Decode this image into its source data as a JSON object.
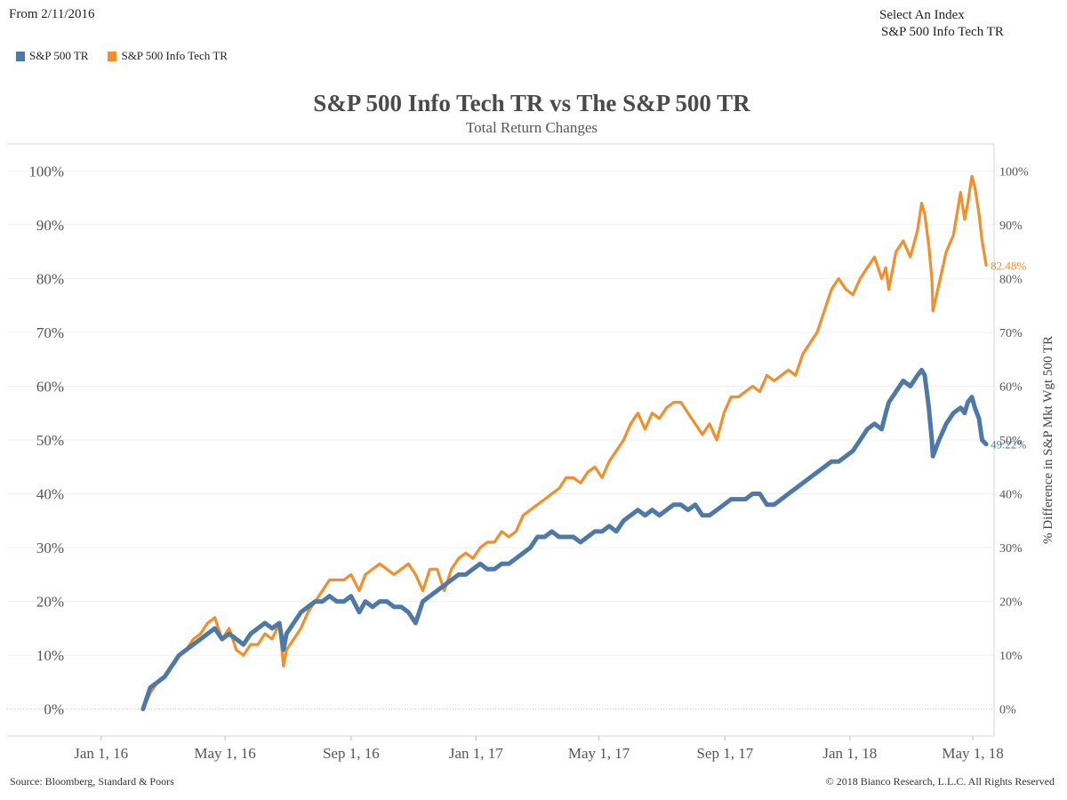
{
  "header": {
    "from_label": "From 2/11/2016",
    "select_label": "Select An Index",
    "select_value": "S&P 500 Info Tech TR"
  },
  "legend": [
    {
      "label": "S&P 500 TR",
      "color": "#4e79a7"
    },
    {
      "label": "S&P 500 Info Tech TR",
      "color": "#f28e2b"
    }
  ],
  "footer": {
    "source": "Source: Bloomberg, Standard & Poors",
    "copyright": "© 2018 Bianco Research, L.L.C. All Rights Reserved"
  },
  "chart_data": {
    "type": "line",
    "title": "S&P 500 Info Tech TR vs The S&P 500 TR",
    "subtitle": "Total Return Changes",
    "xlabel": "",
    "ylabel_right": "% Difference in S&P Mkt Wgt 500 TR",
    "x_range": [
      "2015-12-01",
      "2018-05-20"
    ],
    "ylim": [
      -5,
      105
    ],
    "yticks": [
      0,
      10,
      20,
      30,
      40,
      50,
      60,
      70,
      80,
      90,
      100
    ],
    "ytick_labels": [
      "0%",
      "10%",
      "20%",
      "30%",
      "40%",
      "50%",
      "60%",
      "70%",
      "80%",
      "90%",
      "100%"
    ],
    "xticks": [
      {
        "date": "2016-01-01",
        "label": "Jan 1, 16"
      },
      {
        "date": "2016-05-01",
        "label": "May 1, 16"
      },
      {
        "date": "2016-09-01",
        "label": "Sep 1, 16"
      },
      {
        "date": "2017-01-01",
        "label": "Jan 1, 17"
      },
      {
        "date": "2017-05-01",
        "label": "May 1, 17"
      },
      {
        "date": "2017-09-01",
        "label": "Sep 1, 17"
      },
      {
        "date": "2018-01-01",
        "label": "Jan 1, 18"
      },
      {
        "date": "2018-05-01",
        "label": "May 1, 18"
      }
    ],
    "grid": true,
    "legend_position": "top-left",
    "series": [
      {
        "name": "S&P 500 Info Tech TR",
        "color": "#f28e2b",
        "end_label": "82.48%",
        "points": [
          [
            "2016-02-11",
            0
          ],
          [
            "2016-02-18",
            3
          ],
          [
            "2016-02-25",
            5
          ],
          [
            "2016-03-03",
            6
          ],
          [
            "2016-03-10",
            8
          ],
          [
            "2016-03-17",
            10
          ],
          [
            "2016-03-24",
            11
          ],
          [
            "2016-03-31",
            13
          ],
          [
            "2016-04-07",
            14
          ],
          [
            "2016-04-14",
            16
          ],
          [
            "2016-04-21",
            17
          ],
          [
            "2016-04-28",
            13
          ],
          [
            "2016-05-05",
            15
          ],
          [
            "2016-05-12",
            11
          ],
          [
            "2016-05-19",
            10
          ],
          [
            "2016-05-26",
            12
          ],
          [
            "2016-06-02",
            12
          ],
          [
            "2016-06-09",
            14
          ],
          [
            "2016-06-16",
            13
          ],
          [
            "2016-06-23",
            16
          ],
          [
            "2016-06-27",
            8
          ],
          [
            "2016-06-30",
            11
          ],
          [
            "2016-07-07",
            13
          ],
          [
            "2016-07-14",
            15
          ],
          [
            "2016-07-21",
            18
          ],
          [
            "2016-07-28",
            20
          ],
          [
            "2016-08-04",
            22
          ],
          [
            "2016-08-11",
            24
          ],
          [
            "2016-08-18",
            24
          ],
          [
            "2016-08-25",
            24
          ],
          [
            "2016-09-01",
            25
          ],
          [
            "2016-09-09",
            22
          ],
          [
            "2016-09-15",
            25
          ],
          [
            "2016-09-22",
            26
          ],
          [
            "2016-09-29",
            27
          ],
          [
            "2016-10-06",
            26
          ],
          [
            "2016-10-13",
            25
          ],
          [
            "2016-10-20",
            26
          ],
          [
            "2016-10-27",
            27
          ],
          [
            "2016-11-03",
            25
          ],
          [
            "2016-11-10",
            22
          ],
          [
            "2016-11-17",
            26
          ],
          [
            "2016-11-24",
            26
          ],
          [
            "2016-12-01",
            22
          ],
          [
            "2016-12-08",
            26
          ],
          [
            "2016-12-15",
            28
          ],
          [
            "2016-12-22",
            29
          ],
          [
            "2016-12-29",
            28
          ],
          [
            "2017-01-05",
            30
          ],
          [
            "2017-01-12",
            31
          ],
          [
            "2017-01-19",
            31
          ],
          [
            "2017-01-26",
            33
          ],
          [
            "2017-02-02",
            32
          ],
          [
            "2017-02-09",
            33
          ],
          [
            "2017-02-16",
            36
          ],
          [
            "2017-02-23",
            37
          ],
          [
            "2017-03-02",
            38
          ],
          [
            "2017-03-09",
            39
          ],
          [
            "2017-03-16",
            40
          ],
          [
            "2017-03-23",
            41
          ],
          [
            "2017-03-30",
            43
          ],
          [
            "2017-04-06",
            43
          ],
          [
            "2017-04-13",
            42
          ],
          [
            "2017-04-20",
            44
          ],
          [
            "2017-04-27",
            45
          ],
          [
            "2017-05-04",
            43
          ],
          [
            "2017-05-11",
            46
          ],
          [
            "2017-05-18",
            48
          ],
          [
            "2017-05-25",
            50
          ],
          [
            "2017-06-01",
            53
          ],
          [
            "2017-06-08",
            55
          ],
          [
            "2017-06-15",
            52
          ],
          [
            "2017-06-22",
            55
          ],
          [
            "2017-06-29",
            54
          ],
          [
            "2017-07-06",
            56
          ],
          [
            "2017-07-13",
            57
          ],
          [
            "2017-07-20",
            57
          ],
          [
            "2017-07-27",
            55
          ],
          [
            "2017-08-03",
            53
          ],
          [
            "2017-08-10",
            51
          ],
          [
            "2017-08-17",
            53
          ],
          [
            "2017-08-24",
            50
          ],
          [
            "2017-08-31",
            55
          ],
          [
            "2017-09-07",
            58
          ],
          [
            "2017-09-14",
            58
          ],
          [
            "2017-09-21",
            59
          ],
          [
            "2017-09-28",
            60
          ],
          [
            "2017-10-05",
            59
          ],
          [
            "2017-10-12",
            62
          ],
          [
            "2017-10-19",
            61
          ],
          [
            "2017-10-26",
            62
          ],
          [
            "2017-11-02",
            63
          ],
          [
            "2017-11-09",
            62
          ],
          [
            "2017-11-16",
            66
          ],
          [
            "2017-11-23",
            68
          ],
          [
            "2017-11-30",
            70
          ],
          [
            "2017-12-07",
            74
          ],
          [
            "2017-12-14",
            78
          ],
          [
            "2017-12-21",
            80
          ],
          [
            "2017-12-28",
            78
          ],
          [
            "2018-01-04",
            77
          ],
          [
            "2018-01-11",
            80
          ],
          [
            "2018-01-18",
            82
          ],
          [
            "2018-01-25",
            84
          ],
          [
            "2018-02-01",
            80
          ],
          [
            "2018-02-05",
            82
          ],
          [
            "2018-02-08",
            78
          ],
          [
            "2018-02-15",
            85
          ],
          [
            "2018-02-22",
            87
          ],
          [
            "2018-03-01",
            84
          ],
          [
            "2018-03-08",
            89
          ],
          [
            "2018-03-12",
            94
          ],
          [
            "2018-03-15",
            92
          ],
          [
            "2018-03-19",
            86
          ],
          [
            "2018-03-22",
            80
          ],
          [
            "2018-03-23",
            74
          ],
          [
            "2018-03-29",
            79
          ],
          [
            "2018-04-05",
            85
          ],
          [
            "2018-04-12",
            88
          ],
          [
            "2018-04-19",
            96
          ],
          [
            "2018-04-23",
            91
          ],
          [
            "2018-04-26",
            94
          ],
          [
            "2018-04-30",
            99
          ],
          [
            "2018-05-03",
            97
          ],
          [
            "2018-05-07",
            92
          ],
          [
            "2018-05-10",
            87
          ],
          [
            "2018-05-14",
            82.48
          ]
        ]
      },
      {
        "name": "S&P 500 TR",
        "color": "#4e79a7",
        "end_label": "49.22%",
        "points": [
          [
            "2016-02-11",
            0
          ],
          [
            "2016-02-18",
            4
          ],
          [
            "2016-02-25",
            5
          ],
          [
            "2016-03-03",
            6
          ],
          [
            "2016-03-10",
            8
          ],
          [
            "2016-03-17",
            10
          ],
          [
            "2016-03-24",
            11
          ],
          [
            "2016-03-31",
            12
          ],
          [
            "2016-04-07",
            13
          ],
          [
            "2016-04-14",
            14
          ],
          [
            "2016-04-21",
            15
          ],
          [
            "2016-04-28",
            13
          ],
          [
            "2016-05-05",
            14
          ],
          [
            "2016-05-12",
            13
          ],
          [
            "2016-05-19",
            12
          ],
          [
            "2016-05-26",
            14
          ],
          [
            "2016-06-02",
            15
          ],
          [
            "2016-06-09",
            16
          ],
          [
            "2016-06-16",
            15
          ],
          [
            "2016-06-23",
            16
          ],
          [
            "2016-06-27",
            11
          ],
          [
            "2016-06-30",
            14
          ],
          [
            "2016-07-07",
            16
          ],
          [
            "2016-07-14",
            18
          ],
          [
            "2016-07-21",
            19
          ],
          [
            "2016-07-28",
            20
          ],
          [
            "2016-08-04",
            20
          ],
          [
            "2016-08-11",
            21
          ],
          [
            "2016-08-18",
            20
          ],
          [
            "2016-08-25",
            20
          ],
          [
            "2016-09-01",
            21
          ],
          [
            "2016-09-09",
            18
          ],
          [
            "2016-09-15",
            20
          ],
          [
            "2016-09-22",
            19
          ],
          [
            "2016-09-29",
            20
          ],
          [
            "2016-10-06",
            20
          ],
          [
            "2016-10-13",
            19
          ],
          [
            "2016-10-20",
            19
          ],
          [
            "2016-10-27",
            18
          ],
          [
            "2016-11-03",
            16
          ],
          [
            "2016-11-10",
            20
          ],
          [
            "2016-11-17",
            21
          ],
          [
            "2016-11-24",
            22
          ],
          [
            "2016-12-01",
            23
          ],
          [
            "2016-12-08",
            24
          ],
          [
            "2016-12-15",
            25
          ],
          [
            "2016-12-22",
            25
          ],
          [
            "2016-12-29",
            26
          ],
          [
            "2017-01-05",
            27
          ],
          [
            "2017-01-12",
            26
          ],
          [
            "2017-01-19",
            26
          ],
          [
            "2017-01-26",
            27
          ],
          [
            "2017-02-02",
            27
          ],
          [
            "2017-02-09",
            28
          ],
          [
            "2017-02-16",
            29
          ],
          [
            "2017-02-23",
            30
          ],
          [
            "2017-03-02",
            32
          ],
          [
            "2017-03-09",
            32
          ],
          [
            "2017-03-16",
            33
          ],
          [
            "2017-03-23",
            32
          ],
          [
            "2017-03-30",
            32
          ],
          [
            "2017-04-06",
            32
          ],
          [
            "2017-04-13",
            31
          ],
          [
            "2017-04-20",
            32
          ],
          [
            "2017-04-27",
            33
          ],
          [
            "2017-05-04",
            33
          ],
          [
            "2017-05-11",
            34
          ],
          [
            "2017-05-18",
            33
          ],
          [
            "2017-05-25",
            35
          ],
          [
            "2017-06-01",
            36
          ],
          [
            "2017-06-08",
            37
          ],
          [
            "2017-06-15",
            36
          ],
          [
            "2017-06-22",
            37
          ],
          [
            "2017-06-29",
            36
          ],
          [
            "2017-07-06",
            37
          ],
          [
            "2017-07-13",
            38
          ],
          [
            "2017-07-20",
            38
          ],
          [
            "2017-07-27",
            37
          ],
          [
            "2017-08-03",
            38
          ],
          [
            "2017-08-10",
            36
          ],
          [
            "2017-08-17",
            36
          ],
          [
            "2017-08-24",
            37
          ],
          [
            "2017-08-31",
            38
          ],
          [
            "2017-09-07",
            39
          ],
          [
            "2017-09-14",
            39
          ],
          [
            "2017-09-21",
            39
          ],
          [
            "2017-09-28",
            40
          ],
          [
            "2017-10-05",
            40
          ],
          [
            "2017-10-12",
            38
          ],
          [
            "2017-10-19",
            38
          ],
          [
            "2017-10-26",
            39
          ],
          [
            "2017-11-02",
            40
          ],
          [
            "2017-11-09",
            41
          ],
          [
            "2017-11-16",
            42
          ],
          [
            "2017-11-23",
            43
          ],
          [
            "2017-11-30",
            44
          ],
          [
            "2017-12-07",
            45
          ],
          [
            "2017-12-14",
            46
          ],
          [
            "2017-12-21",
            46
          ],
          [
            "2017-12-28",
            47
          ],
          [
            "2018-01-04",
            48
          ],
          [
            "2018-01-11",
            50
          ],
          [
            "2018-01-18",
            52
          ],
          [
            "2018-01-25",
            53
          ],
          [
            "2018-02-01",
            52
          ],
          [
            "2018-02-05",
            55
          ],
          [
            "2018-02-08",
            57
          ],
          [
            "2018-02-15",
            59
          ],
          [
            "2018-02-22",
            61
          ],
          [
            "2018-03-01",
            60
          ],
          [
            "2018-03-08",
            62
          ],
          [
            "2018-03-12",
            63
          ],
          [
            "2018-03-15",
            62
          ],
          [
            "2018-03-19",
            56
          ],
          [
            "2018-03-22",
            50
          ],
          [
            "2018-03-23",
            47
          ],
          [
            "2018-03-29",
            50
          ],
          [
            "2018-04-05",
            53
          ],
          [
            "2018-04-12",
            55
          ],
          [
            "2018-04-19",
            56
          ],
          [
            "2018-04-23",
            55
          ],
          [
            "2018-04-26",
            57
          ],
          [
            "2018-04-30",
            58
          ],
          [
            "2018-05-03",
            56
          ],
          [
            "2018-05-07",
            54
          ],
          [
            "2018-05-10",
            50
          ],
          [
            "2018-05-14",
            49.22
          ]
        ]
      }
    ]
  }
}
